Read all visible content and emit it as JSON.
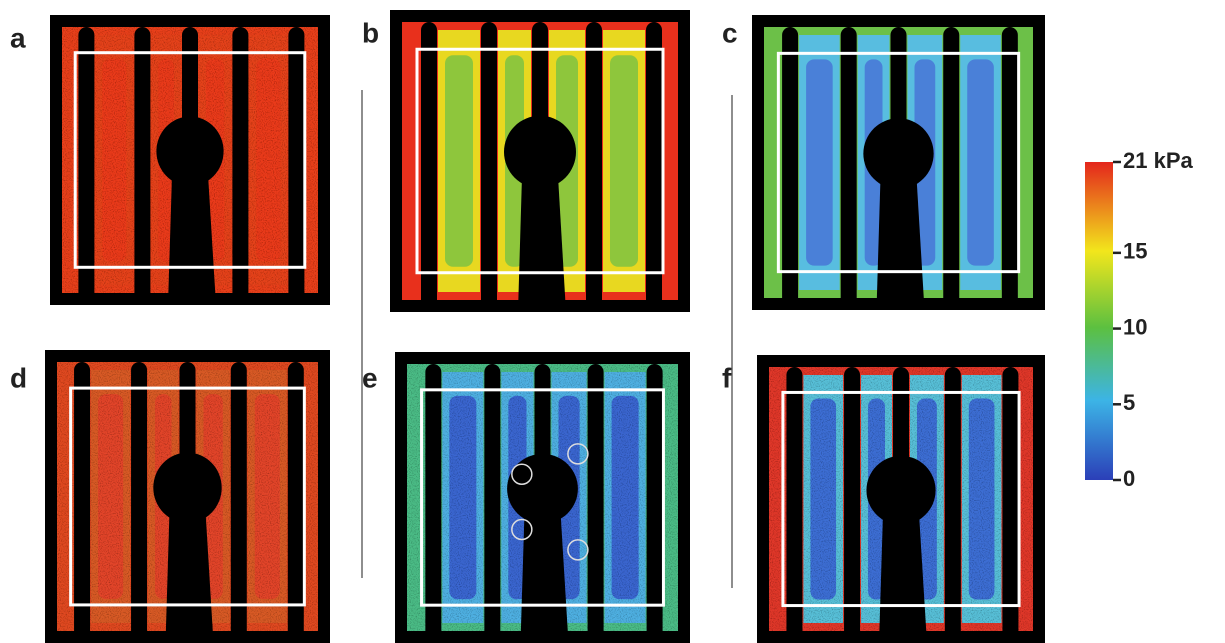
{
  "panels": [
    {
      "label": "a"
    },
    {
      "label": "b"
    },
    {
      "label": "c"
    },
    {
      "label": "d"
    },
    {
      "label": "e"
    },
    {
      "label": "f"
    }
  ],
  "colorbar": {
    "range": [
      0,
      21
    ],
    "ticks": [
      0,
      5,
      10,
      15,
      {
        "value": 21,
        "label": "21 kPa"
      }
    ]
  }
}
